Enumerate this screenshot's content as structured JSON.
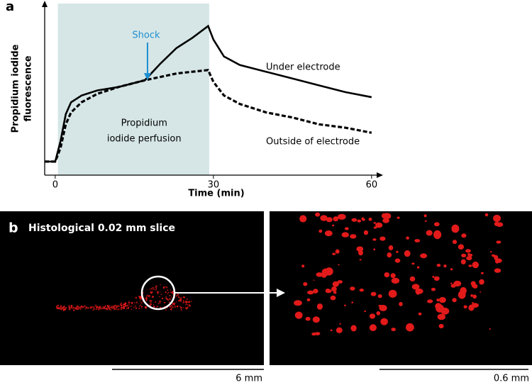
{
  "chart_data": {
    "type": "line",
    "panel_label": "a",
    "xlabel": "Time (min)",
    "ylabel": [
      "Propidium iodide",
      "fluorescence"
    ],
    "x": [
      -2,
      0,
      1,
      2,
      3,
      5,
      8,
      12,
      17,
      20,
      23,
      26,
      29,
      30,
      32,
      35,
      40,
      45,
      50,
      55,
      60
    ],
    "series": [
      {
        "name": "Under electrode",
        "color": "#000000",
        "dashed": false,
        "values": [
          8,
          8,
          20,
          36,
          43,
          47,
          50,
          52,
          56,
          66,
          75,
          81,
          88,
          80,
          70,
          65,
          61,
          57,
          53,
          49,
          46
        ]
      },
      {
        "name": "Outside of electrode",
        "color": "#000000",
        "dashed": true,
        "values": [
          8,
          8,
          16,
          30,
          37,
          43,
          48,
          52,
          56,
          58,
          60,
          61,
          62,
          55,
          47,
          42,
          37,
          34,
          30,
          28,
          25
        ]
      }
    ],
    "shaded_span": {
      "range": [
        0.5,
        29.2
      ],
      "color": "#d6e6e6",
      "label": [
        "Propidium",
        "iodide perfusion"
      ]
    },
    "annotation": {
      "text": "Shock",
      "x": 17.5,
      "y": 56,
      "color": "#1b8fd2"
    },
    "xlim": [
      -2,
      61.5
    ],
    "ylim": [
      0,
      100
    ],
    "xticks": [
      0,
      30,
      60
    ]
  },
  "histology": {
    "panel_label": "b",
    "title": "Histological 0.02 mm slice",
    "scale_bars": [
      "6 mm",
      "0.6 mm"
    ]
  }
}
